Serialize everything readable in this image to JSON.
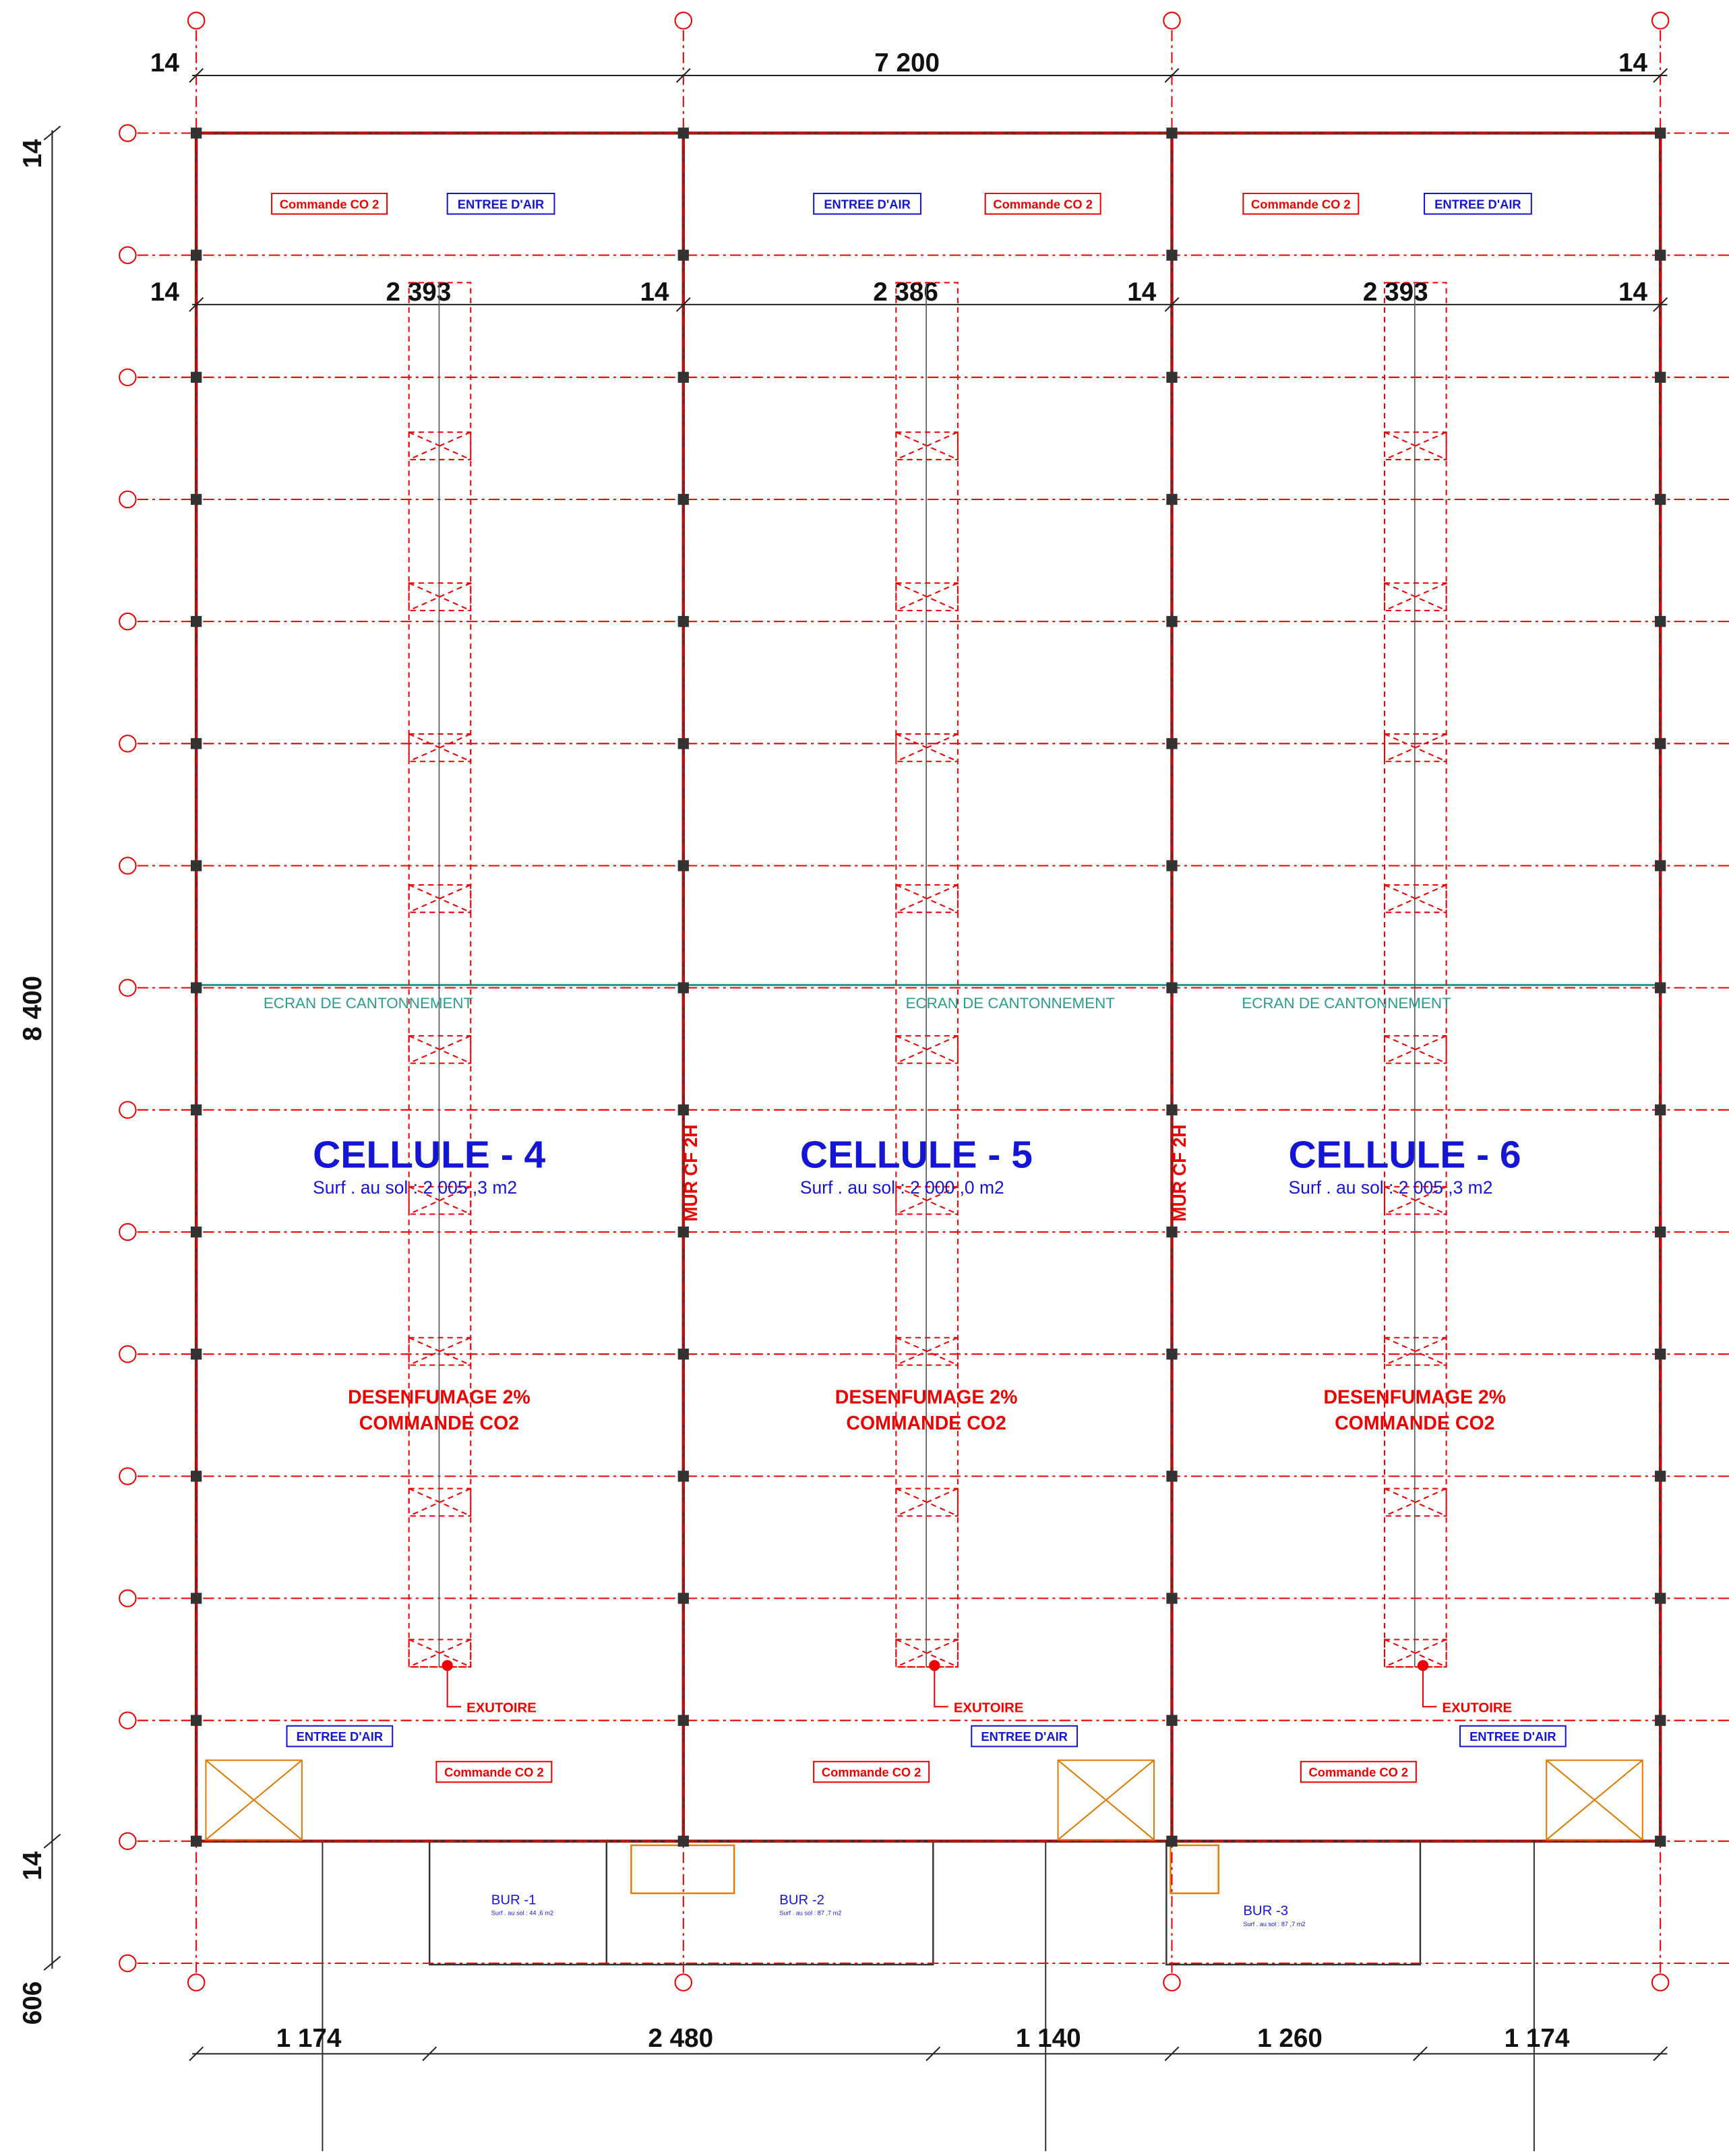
{
  "dimensions": {
    "top": [
      "14",
      "7 200",
      "14"
    ],
    "second": [
      "14",
      "2 393",
      "14",
      "2 386",
      "14",
      "2 393",
      "14"
    ],
    "left": [
      "14",
      "8 400",
      "14",
      "606"
    ],
    "bottom": [
      "1 174",
      "2 480",
      "1 140",
      "1 260",
      "1 174"
    ]
  },
  "cells": [
    {
      "title": "CELLULE - 4",
      "area": "Surf . au sol : 2 005 ,3 m2",
      "smoke": "DESENFUMAGE 2%",
      "control": "COMMANDE CO2",
      "screen": "ECRAN DE CANTONNEMENT",
      "co2_top": "Commande CO 2",
      "air_top": "ENTREE D'AIR",
      "co2_bottom": "Commande CO 2",
      "air_bottom": "ENTREE D'AIR",
      "vent": "EXUTOIRE"
    },
    {
      "title": "CELLULE - 5",
      "area": "Surf . au sol : 2 000 ,0 m2",
      "smoke": "DESENFUMAGE 2%",
      "control": "COMMANDE CO2",
      "screen": "ECRAN DE CANTONNEMENT",
      "co2_top": "Commande CO 2",
      "air_top": "ENTREE D'AIR",
      "co2_bottom": "Commande CO 2",
      "air_bottom": "ENTREE D'AIR",
      "vent": "EXUTOIRE"
    },
    {
      "title": "CELLULE - 6",
      "area": "Surf . au sol : 2 005 ,3 m2",
      "smoke": "DESENFUMAGE 2%",
      "control": "COMMANDE CO2",
      "screen": "ECRAN DE CANTONNEMENT",
      "co2_top": "Commande CO 2",
      "air_top": "ENTREE D'AIR",
      "co2_bottom": "Commande CO 2",
      "air_bottom": "ENTREE D'AIR",
      "vent": "EXUTOIRE"
    }
  ],
  "walls": [
    "MUR CF 2H",
    "MUR CF 2H"
  ],
  "offices": [
    {
      "name": "BUR -1",
      "area": "Surf . au sol : 44 ,6 m2"
    },
    {
      "name": "BUR -2",
      "area": "Surf . au sol : 87 ,7 m2"
    },
    {
      "name": "BUR -3",
      "area": "Surf . au sol : 87 ,7 m2"
    }
  ]
}
